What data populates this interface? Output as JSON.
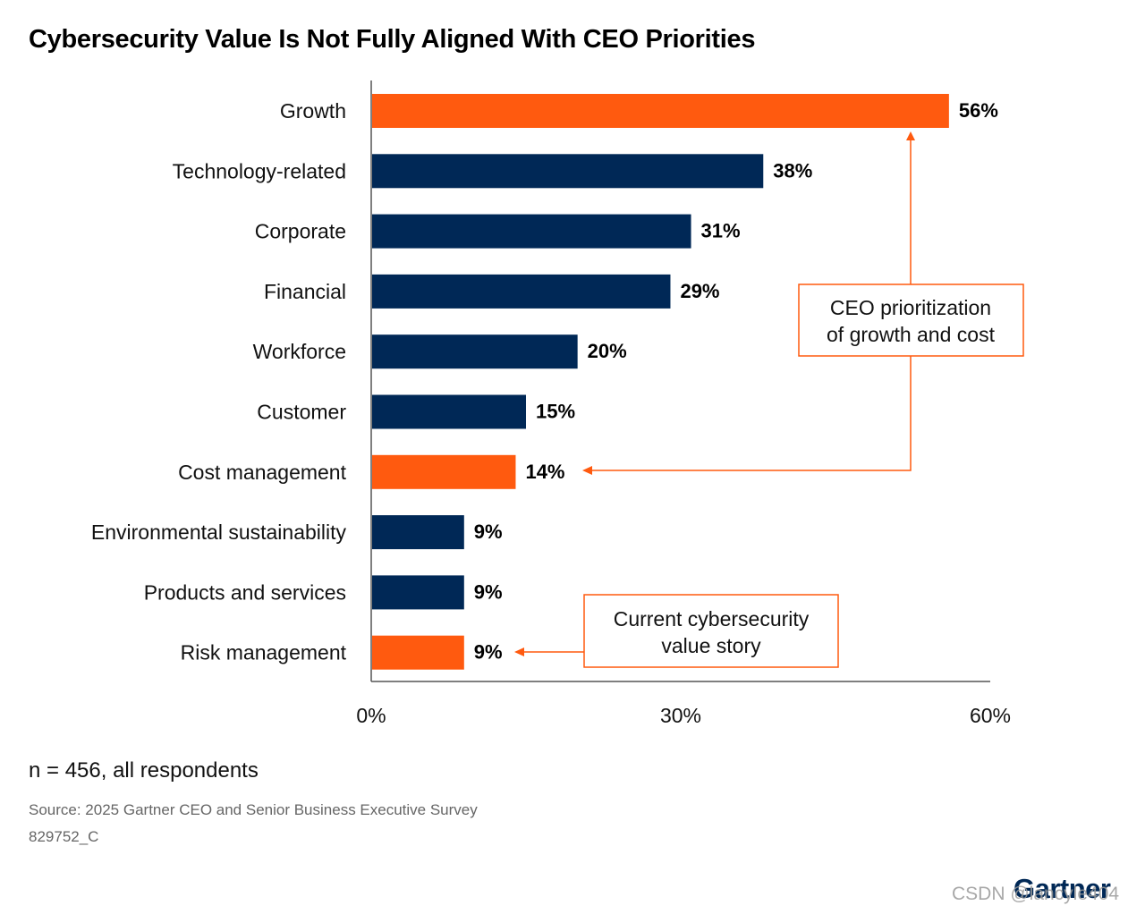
{
  "chart_data": {
    "type": "bar",
    "orientation": "horizontal",
    "title": "Cybersecurity Value Is Not Fully Aligned With CEO Priorities",
    "categories": [
      "Growth",
      "Technology-related",
      "Corporate",
      "Financial",
      "Workforce",
      "Customer",
      "Cost management",
      "Environmental sustainability",
      "Products and services",
      "Risk management"
    ],
    "values": [
      56,
      38,
      31,
      29,
      20,
      15,
      14,
      9,
      9,
      9
    ],
    "value_labels": [
      "56%",
      "38%",
      "31%",
      "29%",
      "20%",
      "15%",
      "14%",
      "9%",
      "9%",
      "9%"
    ],
    "highlighted": [
      true,
      false,
      false,
      false,
      false,
      false,
      true,
      false,
      false,
      true
    ],
    "xlim": [
      0,
      60
    ],
    "x_ticks": [
      0,
      30,
      60
    ],
    "x_tick_labels": [
      "0%",
      "30%",
      "60%"
    ],
    "colors": {
      "default": "#002856",
      "highlight": "#ff5a0f"
    },
    "annotations": [
      {
        "lines": [
          "CEO prioritization",
          "of growth and cost"
        ],
        "points_to": [
          "Growth",
          "Cost management"
        ]
      },
      {
        "lines": [
          "Current cybersecurity",
          "value story"
        ],
        "points_to": [
          "Risk management"
        ]
      }
    ]
  },
  "footer": {
    "sample": "n = 456, all respondents",
    "source": "Source: 2025 Gartner CEO and Senior Business Executive Survey",
    "code": "829752_C"
  },
  "logo": "Gartner",
  "watermark": "CSDN @lancyle404"
}
